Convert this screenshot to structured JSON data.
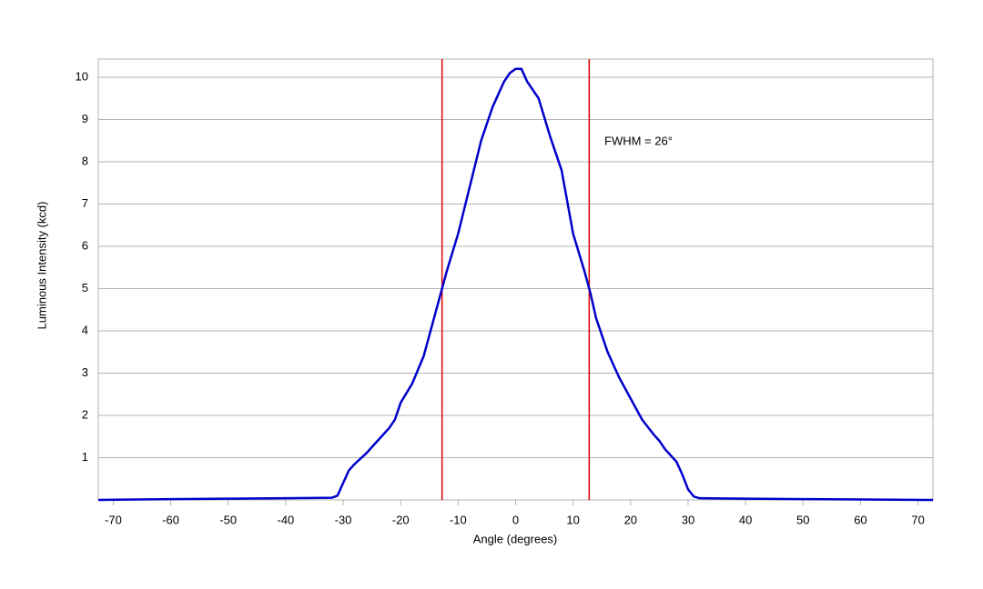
{
  "chart_data": {
    "type": "line",
    "x_label": "Angle (degrees)",
    "y_label": "Luminous Intensity (kcd)",
    "annotation": "FWHM = 26°",
    "x": [
      -72.6,
      -60,
      -50,
      -40,
      -32,
      -31,
      -30,
      -29,
      -28,
      -26,
      -24,
      -22,
      -21,
      -20,
      -18,
      -16,
      -14,
      -13,
      -12,
      -10,
      -8,
      -6,
      -4,
      -2,
      -1,
      0,
      1,
      2,
      4,
      6,
      8,
      10,
      12,
      13,
      14,
      16,
      18,
      20,
      22,
      24,
      25,
      26,
      28,
      29,
      30,
      31,
      32,
      40,
      50,
      60,
      72.6
    ],
    "series": [
      {
        "color": "#0000cc",
        "values": [
          0.0,
          0.02,
          0.03,
          0.04,
          0.05,
          0.1,
          0.4,
          0.7,
          0.85,
          1.1,
          1.4,
          1.7,
          1.9,
          2.3,
          2.75,
          3.4,
          4.4,
          4.9,
          5.4,
          6.3,
          7.4,
          8.5,
          9.3,
          9.9,
          10.1,
          10.2,
          10.2,
          9.9,
          9.5,
          8.6,
          7.8,
          6.3,
          5.4,
          4.9,
          4.3,
          3.5,
          2.9,
          2.4,
          1.9,
          1.55,
          1.4,
          1.2,
          0.9,
          0.6,
          0.25,
          0.08,
          0.04,
          0.03,
          0.02,
          0.01,
          0.0
        ]
      }
    ],
    "vlines": [
      -12.8,
      12.8
    ],
    "vline_color": "#e00000",
    "xlim": [
      -72.6,
      72.6
    ],
    "ylim": [
      0,
      10.43
    ],
    "xticks": [
      -70,
      -60,
      -50,
      -40,
      -30,
      -20,
      -10,
      0,
      10,
      20,
      30,
      40,
      50,
      60,
      70
    ],
    "yticks": [
      1,
      2,
      3,
      4,
      5,
      6,
      7,
      8,
      9,
      10
    ],
    "grid": true
  }
}
